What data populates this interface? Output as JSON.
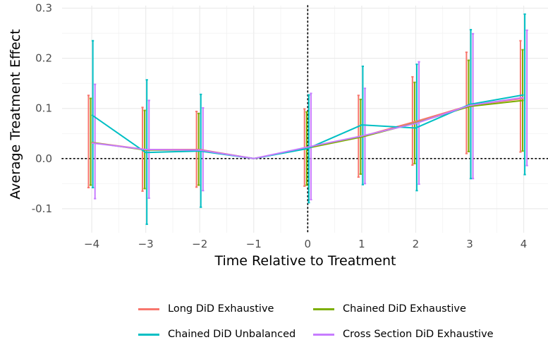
{
  "chart_data": {
    "type": "line",
    "title": "",
    "xlabel": "Time Relative to Treatment",
    "ylabel": "Average Treatment Effect",
    "x": [
      -4,
      -3,
      -2,
      -1,
      0,
      1,
      2,
      3,
      4
    ],
    "x_ticks": [
      "−4",
      "−3",
      "−2",
      "−1",
      "0",
      "1",
      "2",
      "3",
      "4"
    ],
    "y_ticks": [
      {
        "value": -0.1,
        "label": "-0.1"
      },
      {
        "value": 0.0,
        "label": "0.0"
      },
      {
        "value": 0.1,
        "label": "0.1"
      },
      {
        "value": 0.2,
        "label": "0.2"
      },
      {
        "value": 0.3,
        "label": "0.3"
      }
    ],
    "xlim": [
      -4.55,
      4.45
    ],
    "ylim": [
      -0.148,
      0.305
    ],
    "grid": true,
    "reference_lines": {
      "h": 0,
      "v": 0,
      "style": "dotted"
    },
    "legend_position": "bottom",
    "series": [
      {
        "name": "Long DiD Exhaustive",
        "color": "#F8766D",
        "offset": -0.06,
        "y": [
          0.032,
          0.018,
          0.018,
          0.0,
          0.022,
          0.044,
          0.074,
          0.106,
          0.12
        ],
        "lower": [
          -0.058,
          -0.065,
          -0.057,
          null,
          -0.055,
          -0.037,
          -0.013,
          0.01,
          0.013
        ],
        "upper": [
          0.126,
          0.102,
          0.094,
          null,
          0.099,
          0.126,
          0.163,
          0.212,
          0.235
        ]
      },
      {
        "name": "Chained DiD Exhaustive",
        "color": "#7CAE00",
        "offset": -0.02,
        "y": [
          0.032,
          0.017,
          0.017,
          0.0,
          0.021,
          0.043,
          0.071,
          0.104,
          0.116
        ],
        "lower": [
          -0.053,
          -0.06,
          -0.053,
          null,
          -0.053,
          -0.031,
          -0.01,
          0.014,
          0.015
        ],
        "upper": [
          0.12,
          0.096,
          0.09,
          null,
          0.093,
          0.118,
          0.152,
          0.196,
          0.217
        ]
      },
      {
        "name": "Chained DiD Unbalanced",
        "color": "#00BFC4",
        "offset": 0.02,
        "y": [
          0.087,
          0.012,
          0.015,
          0.0,
          0.02,
          0.067,
          0.061,
          0.108,
          0.127
        ],
        "lower": [
          -0.058,
          -0.131,
          -0.097,
          null,
          -0.088,
          -0.052,
          -0.064,
          -0.04,
          -0.032
        ],
        "upper": [
          0.235,
          0.157,
          0.128,
          null,
          0.127,
          0.184,
          0.188,
          0.257,
          0.288
        ]
      },
      {
        "name": "Cross Section DiD Exhaustive",
        "color": "#C77CFF",
        "offset": 0.06,
        "y": [
          0.031,
          0.018,
          0.017,
          0.0,
          0.023,
          0.045,
          0.07,
          0.106,
          0.122
        ],
        "lower": [
          -0.08,
          -0.079,
          -0.064,
          null,
          -0.082,
          -0.05,
          -0.051,
          -0.04,
          -0.014
        ],
        "upper": [
          0.148,
          0.116,
          0.101,
          null,
          0.13,
          0.14,
          0.193,
          0.249,
          0.256
        ]
      }
    ]
  }
}
